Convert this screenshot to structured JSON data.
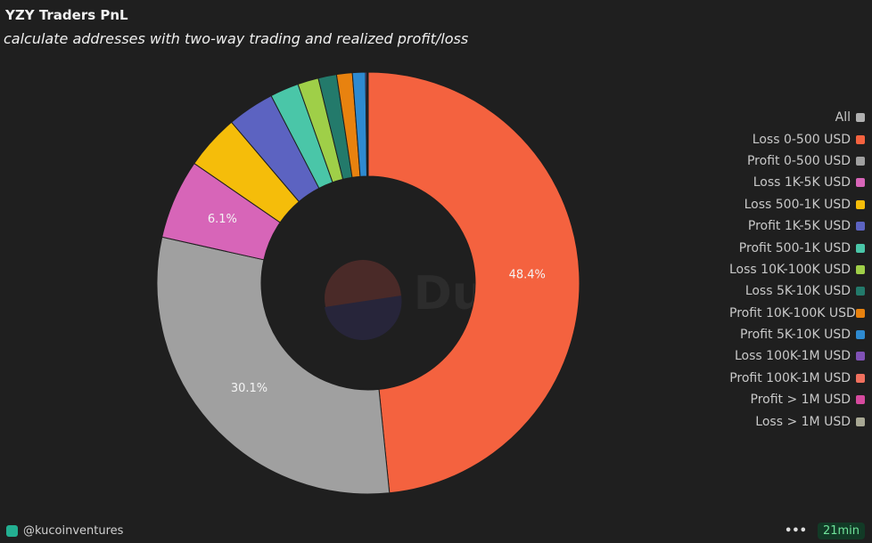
{
  "chart_data": {
    "type": "donut",
    "title": "YZY Traders PnL",
    "subtitle": "calculate addresses with two-way trading and realized profit/loss",
    "watermark": "Dune",
    "legend_all": {
      "name": "All",
      "color": "#b0b0b0"
    },
    "legend": "right",
    "categories": [
      "Loss 0-500 USD",
      "Profit 0-500 USD",
      "Loss 1K-5K USD",
      "Loss 500-1K USD",
      "Profit 1K-5K USD",
      "Profit 500-1K USD",
      "Loss 10K-100K USD",
      "Loss 5K-10K USD",
      "Profit 10K-100K USD",
      "Profit 5K-10K USD",
      "Loss 100K-1M USD",
      "Profit 100K-1M USD",
      "Profit > 1M USD",
      "Loss > 1M USD"
    ],
    "values": [
      48.4,
      30.1,
      6.1,
      4.2,
      3.6,
      2.2,
      1.6,
      1.4,
      1.2,
      1.0,
      0.1,
      0.05,
      0.03,
      0.02
    ],
    "value_labels": [
      "48.4%",
      "30.1%",
      "6.1%",
      null,
      null,
      null,
      null,
      null,
      null,
      null,
      null,
      null,
      null,
      null
    ],
    "colors": [
      "#f4623f",
      "#a0a0a0",
      "#d765b8",
      "#f5bd0a",
      "#5c63c1",
      "#4ac6a8",
      "#9fcf48",
      "#237a6b",
      "#e8820f",
      "#2e8ad0",
      "#8051b5",
      "#f0705e",
      "#d64a9e",
      "#a8a894"
    ]
  },
  "footer": {
    "author": "@kucoinventures",
    "age": "21min"
  }
}
